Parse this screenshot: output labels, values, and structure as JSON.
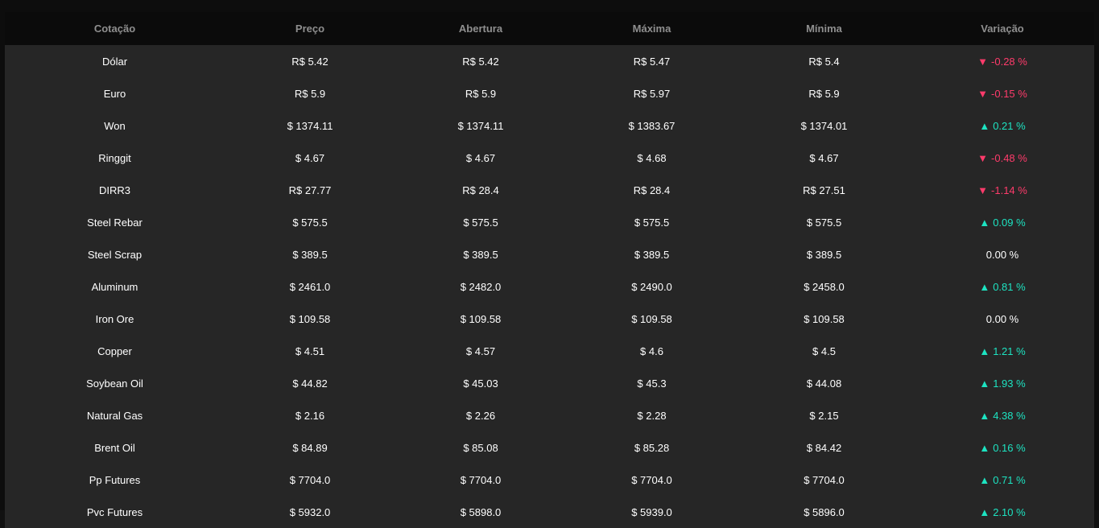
{
  "headers": {
    "cotacao": "Cotação",
    "preco": "Preço",
    "abertura": "Abertura",
    "maxima": "Máxima",
    "minima": "Mínima",
    "variacao": "Variação"
  },
  "colors": {
    "down": "#ff3b6b",
    "up": "#1de3c1",
    "flat": "#ffffff"
  },
  "rows": [
    {
      "name": "Dólar",
      "price": "R$ 5.42",
      "open": "R$ 5.42",
      "high": "R$ 5.47",
      "low": "R$ 5.4",
      "change": "-0.28 %",
      "direction": "down"
    },
    {
      "name": "Euro",
      "price": "R$ 5.9",
      "open": "R$ 5.9",
      "high": "R$ 5.97",
      "low": "R$ 5.9",
      "change": "-0.15 %",
      "direction": "down"
    },
    {
      "name": "Won",
      "price": "$ 1374.11",
      "open": "$ 1374.11",
      "high": "$ 1383.67",
      "low": "$ 1374.01",
      "change": "0.21 %",
      "direction": "up"
    },
    {
      "name": "Ringgit",
      "price": "$ 4.67",
      "open": "$ 4.67",
      "high": "$ 4.68",
      "low": "$ 4.67",
      "change": "-0.48 %",
      "direction": "down"
    },
    {
      "name": "DIRR3",
      "price": "R$ 27.77",
      "open": "R$ 28.4",
      "high": "R$ 28.4",
      "low": "R$ 27.51",
      "change": "-1.14 %",
      "direction": "down"
    },
    {
      "name": "Steel Rebar",
      "price": "$ 575.5",
      "open": "$ 575.5",
      "high": "$ 575.5",
      "low": "$ 575.5",
      "change": "0.09 %",
      "direction": "up"
    },
    {
      "name": "Steel Scrap",
      "price": "$ 389.5",
      "open": "$ 389.5",
      "high": "$ 389.5",
      "low": "$ 389.5",
      "change": "0.00 %",
      "direction": "flat"
    },
    {
      "name": "Aluminum",
      "price": "$ 2461.0",
      "open": "$ 2482.0",
      "high": "$ 2490.0",
      "low": "$ 2458.0",
      "change": "0.81 %",
      "direction": "up"
    },
    {
      "name": "Iron Ore",
      "price": "$ 109.58",
      "open": "$ 109.58",
      "high": "$ 109.58",
      "low": "$ 109.58",
      "change": "0.00 %",
      "direction": "flat"
    },
    {
      "name": "Copper",
      "price": "$ 4.51",
      "open": "$ 4.57",
      "high": "$ 4.6",
      "low": "$ 4.5",
      "change": "1.21 %",
      "direction": "up"
    },
    {
      "name": "Soybean Oil",
      "price": "$ 44.82",
      "open": "$ 45.03",
      "high": "$ 45.3",
      "low": "$ 44.08",
      "change": "1.93 %",
      "direction": "up"
    },
    {
      "name": "Natural Gas",
      "price": "$ 2.16",
      "open": "$ 2.26",
      "high": "$ 2.28",
      "low": "$ 2.15",
      "change": "4.38 %",
      "direction": "up"
    },
    {
      "name": "Brent Oil",
      "price": "$ 84.89",
      "open": "$ 85.08",
      "high": "$ 85.28",
      "low": "$ 84.42",
      "change": "0.16 %",
      "direction": "up"
    },
    {
      "name": "Pp Futures",
      "price": "$ 7704.0",
      "open": "$ 7704.0",
      "high": "$ 7704.0",
      "low": "$ 7704.0",
      "change": "0.71 %",
      "direction": "up"
    },
    {
      "name": "Pvc Futures",
      "price": "$ 5932.0",
      "open": "$ 5898.0",
      "high": "$ 5939.0",
      "low": "$ 5896.0",
      "change": "2.10 %",
      "direction": "up"
    }
  ]
}
